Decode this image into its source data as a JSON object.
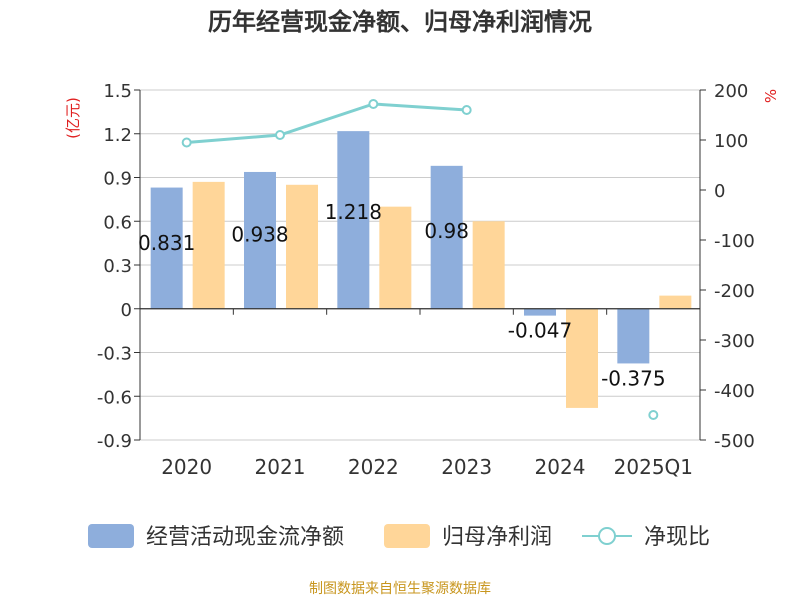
{
  "title": "历年经营现金净额、归母净利润情况",
  "footer": "制图数据来自恒生聚源数据库",
  "chart_data": {
    "type": "bar",
    "title": "历年经营现金净额、归母净利润情况",
    "categories": [
      "2020",
      "2021",
      "2022",
      "2023",
      "2024",
      "2025Q1"
    ],
    "y_left": {
      "label": "(亿元)",
      "ylim": [
        -0.9,
        1.5
      ],
      "ticks": [
        "1.5",
        "1.2",
        "0.9",
        "0.6",
        "0.3",
        "0",
        "-0.3",
        "-0.6",
        "-0.9"
      ],
      "tick_values": [
        1.5,
        1.2,
        0.9,
        0.6,
        0.3,
        0,
        -0.3,
        -0.6,
        -0.9
      ]
    },
    "y_right": {
      "label": "%",
      "ylim": [
        -500,
        200
      ],
      "ticks": [
        "200",
        "100",
        "0",
        "-100",
        "-200",
        "-300",
        "-400",
        "-500"
      ],
      "tick_values": [
        200,
        100,
        0,
        -100,
        -200,
        -300,
        -400,
        -500
      ]
    },
    "series": [
      {
        "name": "经营活动现金流净额",
        "type": "bar",
        "axis": "left",
        "color": "#8eaedc",
        "values": [
          0.831,
          0.938,
          1.218,
          0.98,
          -0.047,
          -0.375
        ],
        "labels": [
          "0.831",
          "0.938",
          "1.218",
          "0.98",
          "-0.047",
          "-0.375"
        ]
      },
      {
        "name": "归母净利润",
        "type": "bar",
        "axis": "left",
        "color": "#ffd699",
        "values": [
          0.87,
          0.85,
          0.7,
          0.6,
          -0.68,
          0.09
        ]
      },
      {
        "name": "净现比",
        "type": "line",
        "axis": "right",
        "color": "#7fd0d0",
        "values": [
          95,
          110,
          172,
          160,
          null,
          -450
        ]
      }
    ],
    "legend_position": "bottom",
    "grid": true
  }
}
